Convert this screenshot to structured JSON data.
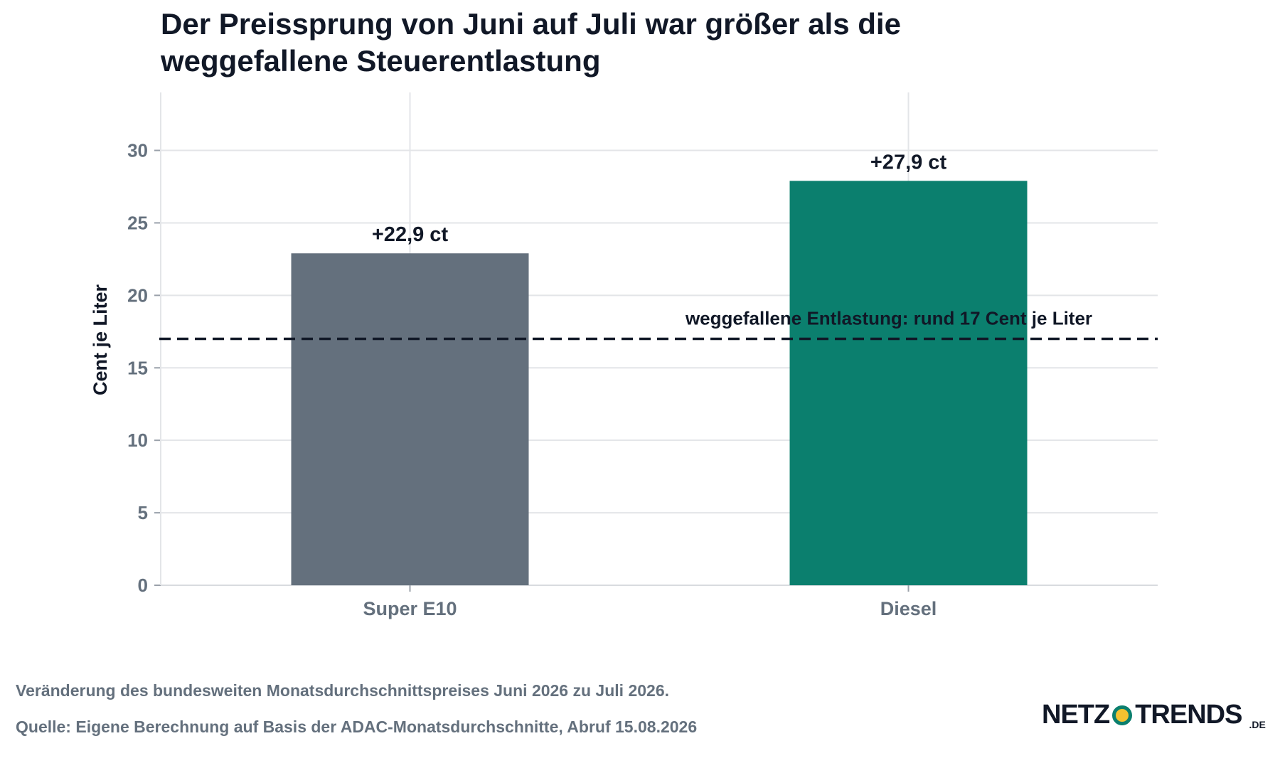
{
  "title": "Der Preissprung von Juni auf Juli war größer als die weggefallene Steuerentlastung",
  "chart_data": {
    "type": "bar",
    "title": "Der Preissprung von Juni auf Juli war größer als die weggefallene Steuerentlastung",
    "categories": [
      "Super E10",
      "Diesel"
    ],
    "values": [
      22.9,
      27.9
    ],
    "data_labels": [
      "+22,9 ct",
      "+27,9 ct"
    ],
    "bar_colors": [
      "#64707d",
      "#0b7f6e"
    ],
    "ylabel": "Cent je Liter",
    "xlabel": "",
    "ylim": [
      0,
      34
    ],
    "yticks": [
      0,
      5,
      10,
      15,
      20,
      25,
      30
    ],
    "grid": true,
    "reference_line": {
      "value": 17,
      "style": "dashed",
      "color": "#111827",
      "label": "weggefallene Entlastung: rund 17 Cent je Liter"
    }
  },
  "footer": {
    "note": "Veränderung des bundesweiten Monatsdurchschnittspreises Juni 2026 zu Juli 2026.",
    "source": "Quelle: Eigene Berechnung auf Basis der ADAC-Monatsdurchschnitte, Abruf 15.08.2026"
  },
  "logo": {
    "left": "NETZ",
    "right": "TRENDS",
    "tld": ".DE",
    "icon": "netztrends-dot-icon"
  }
}
